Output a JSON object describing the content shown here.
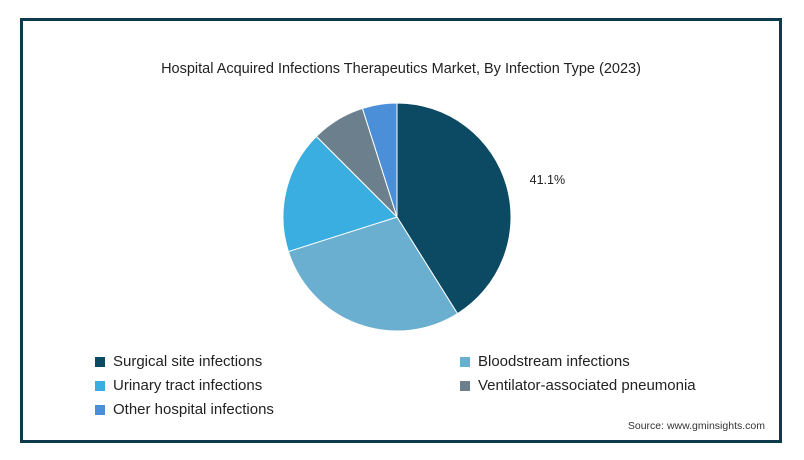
{
  "chart_data": {
    "type": "pie",
    "title": "Hospital Acquired Infections Therapeutics Market, By Infection Type (2023)",
    "slices": [
      {
        "label": "Surgical site infections",
        "value": 41.1,
        "color": "#0b4a62",
        "data_label": "41.1%"
      },
      {
        "label": "Bloodstream infections",
        "value": 29.0,
        "color": "#6aaed0",
        "data_label": ""
      },
      {
        "label": "Urinary tract infections",
        "value": 17.4,
        "color": "#3aaee0",
        "data_label": ""
      },
      {
        "label": "Ventilator-associated pneumonia",
        "value": 7.6,
        "color": "#6b7f8c",
        "data_label": ""
      },
      {
        "label": "Other hospital infections",
        "value": 4.9,
        "color": "#4b8fd9",
        "data_label": ""
      }
    ],
    "legend_position": "bottom"
  },
  "source": "Source: www.gminsights.com"
}
